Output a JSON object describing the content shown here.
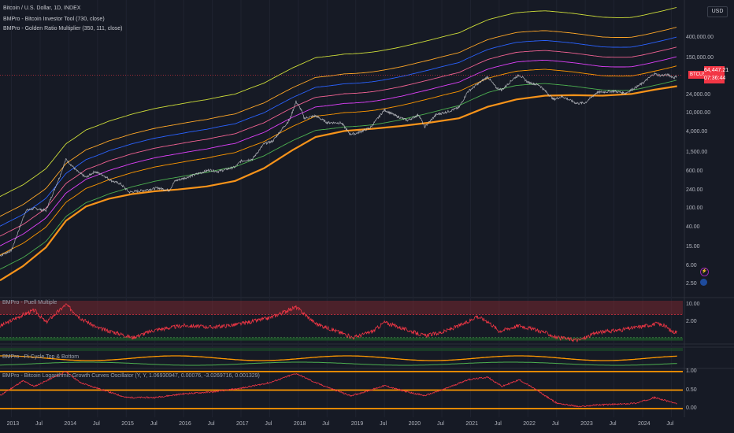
{
  "header": {
    "symbol_title": "Bitcoin / U.S. Dollar, 1D, INDEX",
    "indicator_1": "BMPro - Bitcoin Investor Tool (730, close)",
    "indicator_2": "BMPro - Golden Ratio Multiplier (350, 111, close)",
    "currency_label": "USD"
  },
  "price": {
    "symbol": "BTCUSD",
    "last": "64,447.21",
    "countdown": "07:36:44"
  },
  "panes": {
    "puell_label": "BMPro - Puell Multiple",
    "pi_cycle_label": "BMPro - Pi Cycle Top & Bottom",
    "log_growth_label": "BMPro - Bitcoin Logarithmic Growth Curves Oscillator (Y, Y, 1.06930947, 0.00076, -3.0269716, 0.001329)"
  },
  "colors": {
    "background": "#161a25",
    "price": "#c8cad0",
    "investor_tool_bottom": "#f7931a",
    "oscillator_line": "#f23645",
    "red_zone": "#8b2a30",
    "green_zone": "#1e5a2a",
    "orange_level": "#ff9800"
  },
  "chart_data": [
    {
      "type": "line",
      "title": "Bitcoin / U.S. Dollar, 1D, INDEX",
      "scale": "log",
      "y_ticks": [
        {
          "value": 400000,
          "label": "400,000.00"
        },
        {
          "value": 150000,
          "label": "150,000.00"
        },
        {
          "value": 24000,
          "label": "24,000.00"
        },
        {
          "value": 10000,
          "label": "10,000.00"
        },
        {
          "value": 4000,
          "label": "4,000.00"
        },
        {
          "value": 1500,
          "label": "1,500.00"
        },
        {
          "value": 600,
          "label": "600.00"
        },
        {
          "value": 240,
          "label": "240.00"
        },
        {
          "value": 100,
          "label": "100.00"
        },
        {
          "value": 40,
          "label": "40.00"
        },
        {
          "value": 15,
          "label": "15.00"
        },
        {
          "value": 6,
          "label": "6.00"
        },
        {
          "value": 2.5,
          "label": "2.50"
        }
      ],
      "x_ticks": [
        {
          "t": 2013.0,
          "label": "2013"
        },
        {
          "t": 2013.5,
          "label": "Jul"
        },
        {
          "t": 2014.0,
          "label": "2014"
        },
        {
          "t": 2014.5,
          "label": "Jul"
        },
        {
          "t": 2015.0,
          "label": "2015"
        },
        {
          "t": 2015.5,
          "label": "Jul"
        },
        {
          "t": 2016.0,
          "label": "2016"
        },
        {
          "t": 2016.5,
          "label": "Jul"
        },
        {
          "t": 2017.0,
          "label": "2017"
        },
        {
          "t": 2017.5,
          "label": "Jul"
        },
        {
          "t": 2018.0,
          "label": "2018"
        },
        {
          "t": 2018.5,
          "label": "Jul"
        },
        {
          "t": 2019.0,
          "label": "2019"
        },
        {
          "t": 2019.5,
          "label": "Jul"
        },
        {
          "t": 2020.0,
          "label": "2020"
        },
        {
          "t": 2020.5,
          "label": "Jul"
        },
        {
          "t": 2021.0,
          "label": "2021"
        },
        {
          "t": 2021.5,
          "label": "Jul"
        },
        {
          "t": 2022.0,
          "label": "2022"
        },
        {
          "t": 2022.5,
          "label": "Jul"
        },
        {
          "t": 2023.0,
          "label": "2023"
        },
        {
          "t": 2023.5,
          "label": "Jul"
        },
        {
          "t": 2024.0,
          "label": "2024"
        },
        {
          "t": 2024.5,
          "label": "Jul"
        }
      ],
      "x_range": [
        2012.8,
        2024.7
      ],
      "series": [
        {
          "key": "price",
          "color": "#c8cad0",
          "width": 0.8,
          "points": [
            [
              2012.8,
              10
            ],
            [
              2013.0,
              13
            ],
            [
              2013.25,
              90
            ],
            [
              2013.4,
              100
            ],
            [
              2013.6,
              90
            ],
            [
              2013.85,
              500
            ],
            [
              2013.95,
              1100
            ],
            [
              2014.05,
              800
            ],
            [
              2014.15,
              600
            ],
            [
              2014.3,
              450
            ],
            [
              2014.45,
              600
            ],
            [
              2014.6,
              500
            ],
            [
              2014.75,
              380
            ],
            [
              2014.9,
              330
            ],
            [
              2015.05,
              220
            ],
            [
              2015.3,
              240
            ],
            [
              2015.55,
              270
            ],
            [
              2015.75,
              240
            ],
            [
              2015.85,
              380
            ],
            [
              2016.0,
              430
            ],
            [
              2016.45,
              650
            ],
            [
              2016.6,
              600
            ],
            [
              2016.9,
              750
            ],
            [
              2017.0,
              1000
            ],
            [
              2017.2,
              1100
            ],
            [
              2017.4,
              2300
            ],
            [
              2017.55,
              2600
            ],
            [
              2017.7,
              4500
            ],
            [
              2017.85,
              7500
            ],
            [
              2017.96,
              18000
            ],
            [
              2018.05,
              12000
            ],
            [
              2018.1,
              8000
            ],
            [
              2018.3,
              9000
            ],
            [
              2018.5,
              6500
            ],
            [
              2018.75,
              6400
            ],
            [
              2018.9,
              3700
            ],
            [
              2019.0,
              3800
            ],
            [
              2019.25,
              5000
            ],
            [
              2019.5,
              12000
            ],
            [
              2019.7,
              9000
            ],
            [
              2019.9,
              7200
            ],
            [
              2020.1,
              9500
            ],
            [
              2020.2,
              5200
            ],
            [
              2020.4,
              9500
            ],
            [
              2020.6,
              11000
            ],
            [
              2020.8,
              13500
            ],
            [
              2020.95,
              29000
            ],
            [
              2021.1,
              40000
            ],
            [
              2021.3,
              60000
            ],
            [
              2021.45,
              35000
            ],
            [
              2021.55,
              32000
            ],
            [
              2021.75,
              55000
            ],
            [
              2021.85,
              66000
            ],
            [
              2022.0,
              46000
            ],
            [
              2022.2,
              40000
            ],
            [
              2022.45,
              20000
            ],
            [
              2022.6,
              23000
            ],
            [
              2022.85,
              16500
            ],
            [
              2023.0,
              17000
            ],
            [
              2023.2,
              28000
            ],
            [
              2023.5,
              30000
            ],
            [
              2023.7,
              27000
            ],
            [
              2023.9,
              37000
            ],
            [
              2024.0,
              44000
            ],
            [
              2024.2,
              70000
            ],
            [
              2024.3,
              64000
            ],
            [
              2024.45,
              66000
            ],
            [
              2024.55,
              57000
            ],
            [
              2024.6,
              64447
            ]
          ]
        },
        {
          "key": "investor_tool_bottom",
          "color": "#f7931a",
          "width": 2.2,
          "points": [
            [
              2012.8,
              3
            ],
            [
              2013.2,
              6
            ],
            [
              2013.6,
              15
            ],
            [
              2013.95,
              55
            ],
            [
              2014.3,
              110
            ],
            [
              2014.7,
              160
            ],
            [
              2015.1,
              200
            ],
            [
              2015.5,
              230
            ],
            [
              2015.9,
              250
            ],
            [
              2016.4,
              290
            ],
            [
              2016.9,
              380
            ],
            [
              2017.4,
              700
            ],
            [
              2017.9,
              1700
            ],
            [
              2018.3,
              3200
            ],
            [
              2018.8,
              4300
            ],
            [
              2019.3,
              4800
            ],
            [
              2019.8,
              5500
            ],
            [
              2020.3,
              6500
            ],
            [
              2020.8,
              8000
            ],
            [
              2021.3,
              14000
            ],
            [
              2021.8,
              20000
            ],
            [
              2022.3,
              24000
            ],
            [
              2022.8,
              24500
            ],
            [
              2023.3,
              24000
            ],
            [
              2023.8,
              26000
            ],
            [
              2024.2,
              32000
            ],
            [
              2024.6,
              38000
            ]
          ]
        },
        {
          "key": "gr_band_1",
          "color": "#4caf50",
          "width": 0.9,
          "offset": 1.6
        },
        {
          "key": "gr_band_2",
          "color": "#ff9800",
          "width": 0.9,
          "offset": 3.2
        },
        {
          "key": "gr_band_3",
          "color": "#e040fb",
          "width": 0.9,
          "offset": 5.0
        },
        {
          "key": "gr_band_4",
          "color": "#f06292",
          "width": 0.9,
          "offset": 8.0
        },
        {
          "key": "gr_band_5",
          "color": "#2962ff",
          "width": 0.9,
          "offset": 13.0
        },
        {
          "key": "gr_band_6",
          "color": "#ffa726",
          "width": 0.9,
          "offset": 21.0
        },
        {
          "key": "gr_band_7",
          "color": "#cddc39",
          "width": 0.9,
          "offset": 55.0
        }
      ]
    },
    {
      "type": "line",
      "title": "BMPro - Puell Multiple",
      "y_ticks": [
        {
          "value": 10,
          "label": "10.00"
        },
        {
          "value": 2,
          "label": "2.00"
        }
      ],
      "series": [
        {
          "key": "puell",
          "color": "#f23645",
          "points": [
            [
              2012.8,
              1.4
            ],
            [
              2013.2,
              4
            ],
            [
              2013.4,
              6
            ],
            [
              2013.6,
              2
            ],
            [
              2013.95,
              10
            ],
            [
              2014.2,
              3
            ],
            [
              2014.5,
              1.2
            ],
            [
              2014.9,
              0.7
            ],
            [
              2015.1,
              0.5
            ],
            [
              2015.5,
              1
            ],
            [
              2016.0,
              1.5
            ],
            [
              2016.5,
              1.3
            ],
            [
              2016.9,
              1.6
            ],
            [
              2017.5,
              3
            ],
            [
              2017.96,
              8
            ],
            [
              2018.3,
              1.8
            ],
            [
              2018.8,
              0.7
            ],
            [
              2018.95,
              0.5
            ],
            [
              2019.3,
              0.9
            ],
            [
              2019.5,
              2
            ],
            [
              2019.9,
              1
            ],
            [
              2020.2,
              0.6
            ],
            [
              2020.5,
              0.8
            ],
            [
              2020.95,
              2
            ],
            [
              2021.1,
              3.5
            ],
            [
              2021.3,
              2.2
            ],
            [
              2021.5,
              0.9
            ],
            [
              2021.85,
              1.5
            ],
            [
              2022.3,
              0.8
            ],
            [
              2022.5,
              0.5
            ],
            [
              2022.9,
              0.4
            ],
            [
              2023.2,
              0.8
            ],
            [
              2023.6,
              1
            ],
            [
              2024.0,
              1.4
            ],
            [
              2024.25,
              1.8
            ],
            [
              2024.4,
              1.4
            ],
            [
              2024.5,
              0.9
            ],
            [
              2024.6,
              0.8
            ]
          ]
        }
      ]
    },
    {
      "type": "line",
      "title": "BMPro - Pi Cycle Top & Bottom",
      "series": [
        {
          "key": "pi_top",
          "color": "#ff9800"
        },
        {
          "key": "pi_bottom",
          "color": "#4caf50"
        }
      ]
    },
    {
      "type": "line",
      "title": "BMPro - Bitcoin Logarithmic Growth Curves Oscillator (Y, Y, 1.06930947, 0.00076, -3.0269716, 0.001329)",
      "y_ticks": [
        {
          "value": 1.0,
          "label": "1.00"
        },
        {
          "value": 0.5,
          "label": "0.50"
        },
        {
          "value": 0.0,
          "label": "0.00"
        }
      ],
      "levels": [
        1.0,
        0.5,
        0.0
      ],
      "series": [
        {
          "key": "lgc",
          "color": "#f23645",
          "points": [
            [
              2012.8,
              0.35
            ],
            [
              2013.2,
              0.75
            ],
            [
              2013.4,
              0.6
            ],
            [
              2013.95,
              1.0
            ],
            [
              2014.2,
              0.7
            ],
            [
              2014.6,
              0.5
            ],
            [
              2015.0,
              0.3
            ],
            [
              2015.5,
              0.3
            ],
            [
              2016.0,
              0.4
            ],
            [
              2016.5,
              0.45
            ],
            [
              2017.0,
              0.55
            ],
            [
              2017.5,
              0.7
            ],
            [
              2017.96,
              0.95
            ],
            [
              2018.3,
              0.7
            ],
            [
              2018.9,
              0.35
            ],
            [
              2019.0,
              0.38
            ],
            [
              2019.5,
              0.62
            ],
            [
              2019.9,
              0.45
            ],
            [
              2020.2,
              0.35
            ],
            [
              2020.5,
              0.5
            ],
            [
              2020.95,
              0.78
            ],
            [
              2021.3,
              0.85
            ],
            [
              2021.55,
              0.6
            ],
            [
              2021.85,
              0.78
            ],
            [
              2022.1,
              0.55
            ],
            [
              2022.5,
              0.15
            ],
            [
              2022.9,
              0.05
            ],
            [
              2023.2,
              0.1
            ],
            [
              2023.6,
              0.12
            ],
            [
              2023.9,
              0.15
            ],
            [
              2024.2,
              0.3
            ],
            [
              2024.45,
              0.2
            ],
            [
              2024.6,
              0.12
            ]
          ]
        }
      ]
    }
  ]
}
